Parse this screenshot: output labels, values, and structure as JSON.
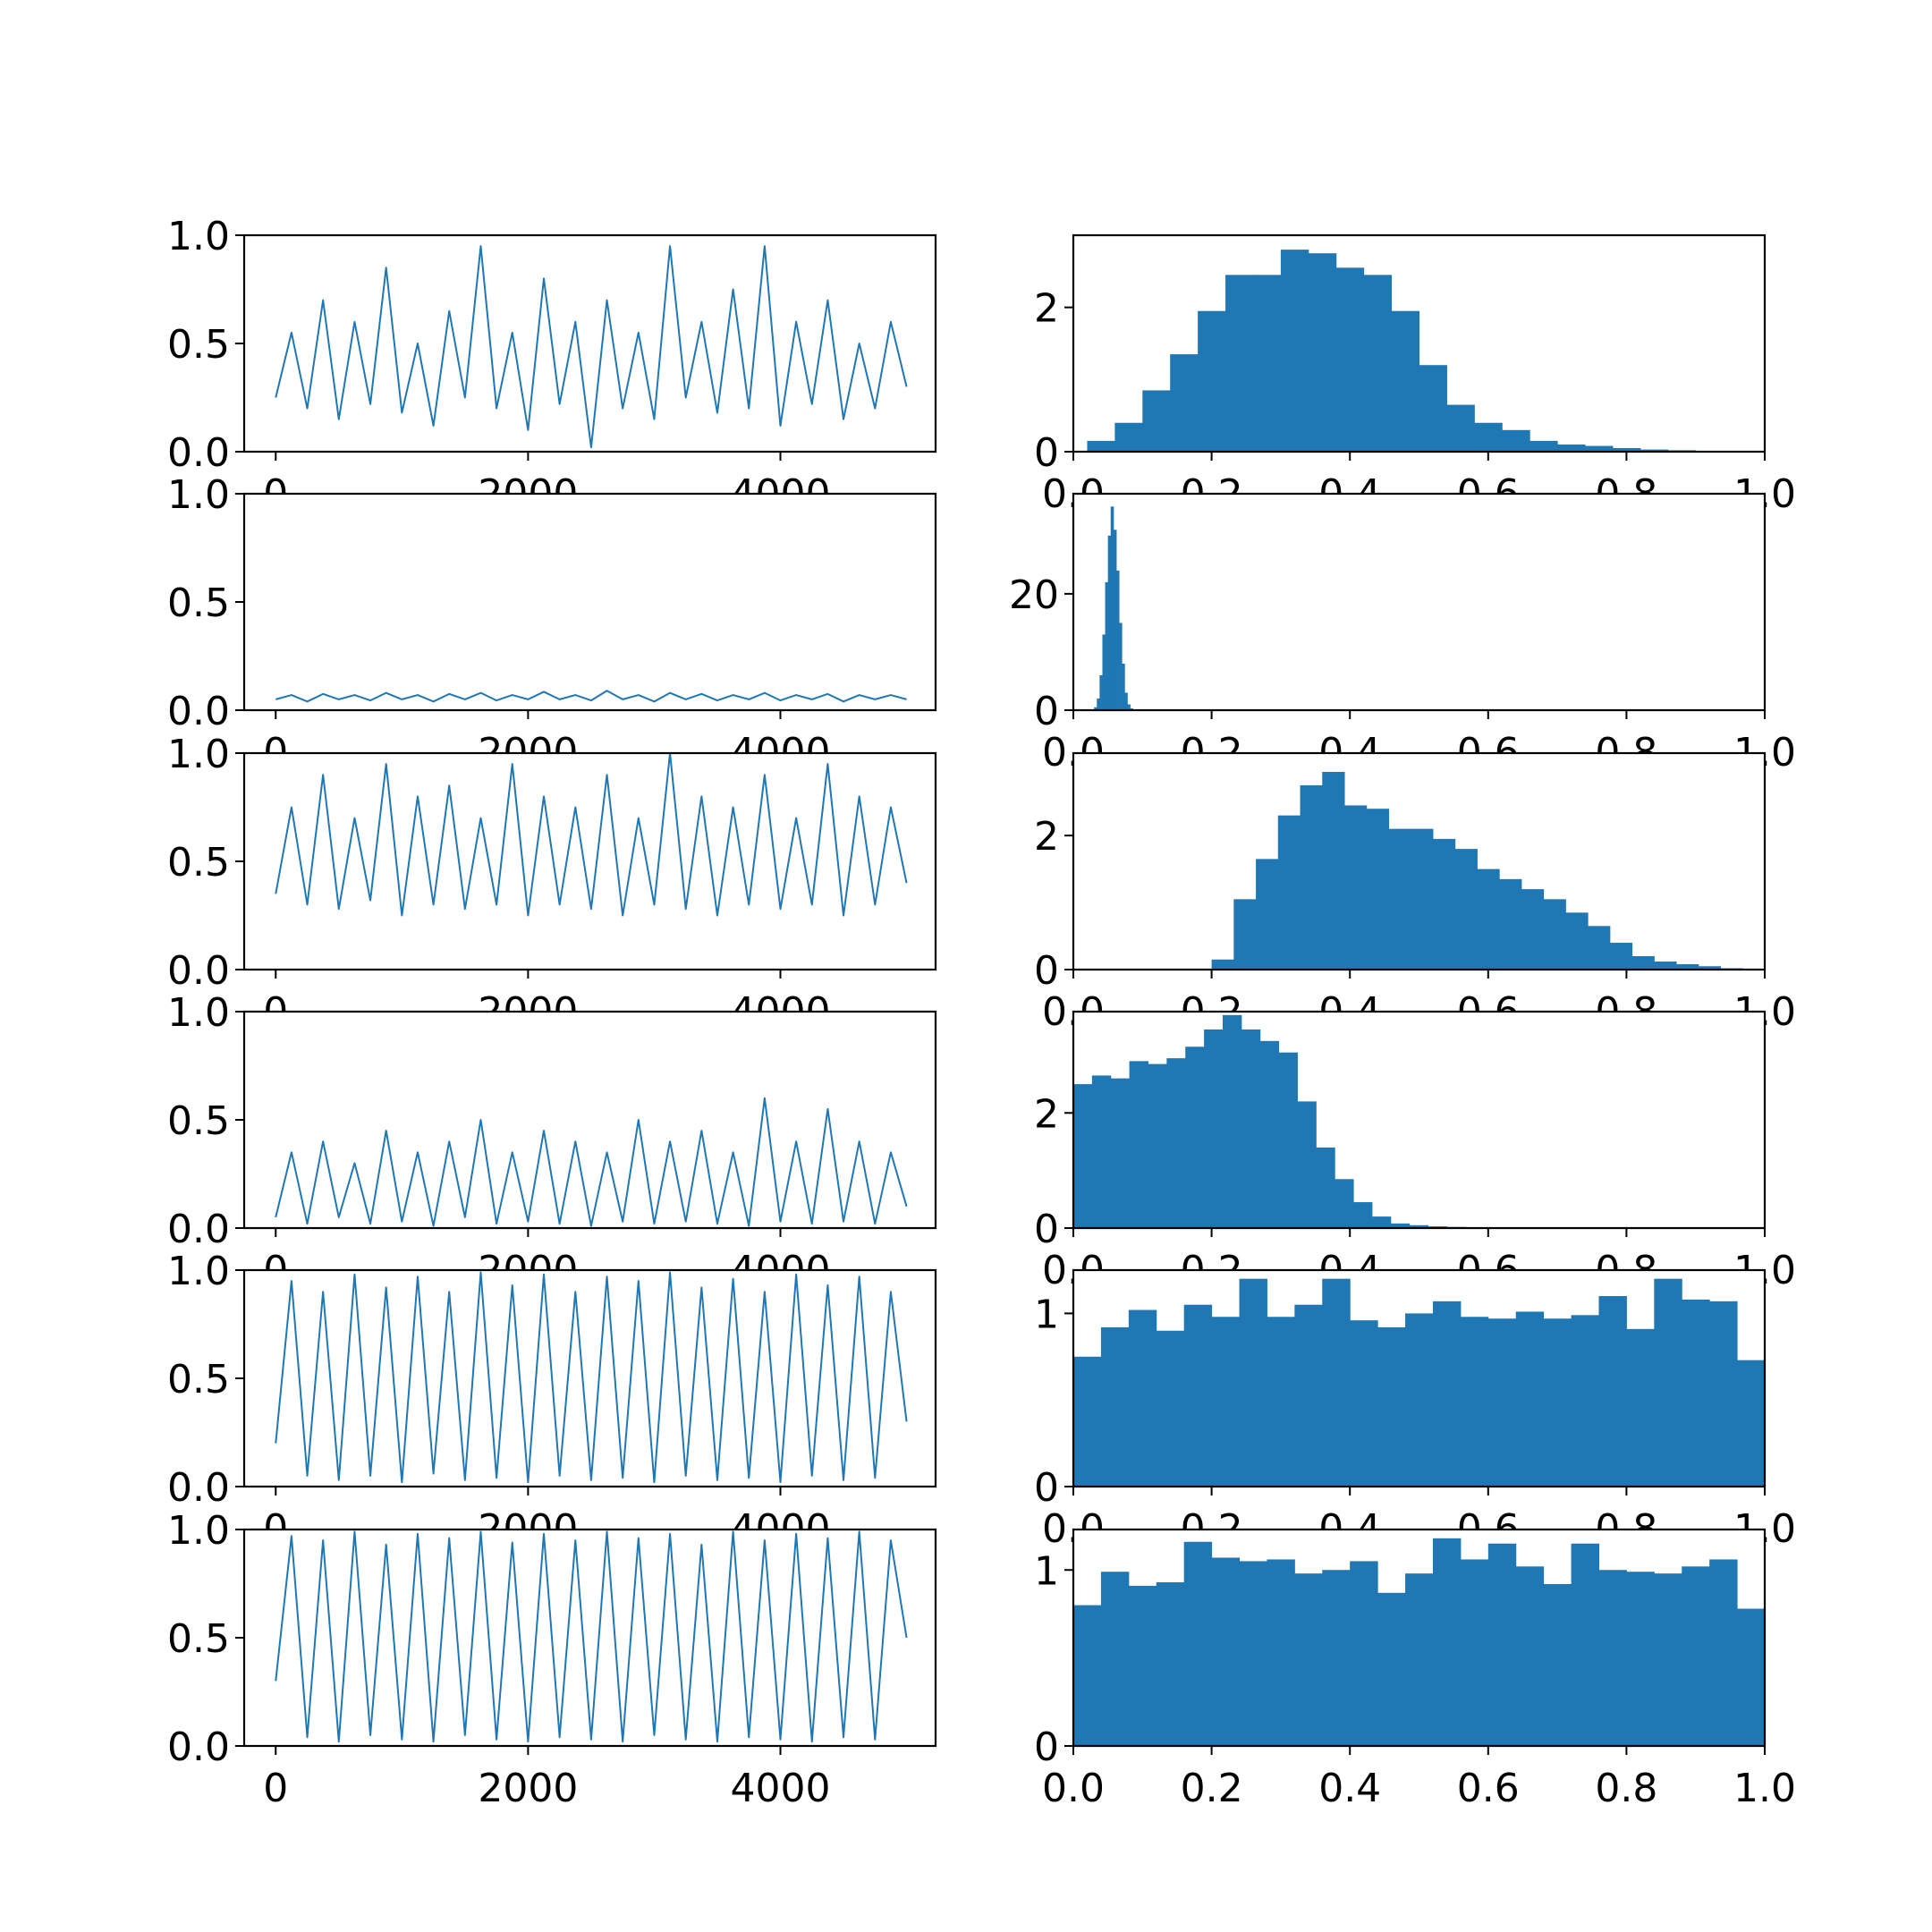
{
  "chart_data": [
    {
      "type": "line",
      "x": [
        0,
        125,
        250,
        375,
        500,
        625,
        750,
        875,
        1000,
        1125,
        1250,
        1375,
        1500,
        1625,
        1750,
        1875,
        2000,
        2125,
        2250,
        2375,
        2500,
        2625,
        2750,
        2875,
        3000,
        3125,
        3250,
        3375,
        3500,
        3625,
        3750,
        3875,
        4000,
        4125,
        4250,
        4375,
        4500,
        4625,
        4750,
        4875,
        5000
      ],
      "values": [
        0.25,
        0.55,
        0.2,
        0.7,
        0.15,
        0.6,
        0.22,
        0.85,
        0.18,
        0.5,
        0.12,
        0.65,
        0.25,
        0.95,
        0.2,
        0.55,
        0.1,
        0.8,
        0.22,
        0.6,
        0.02,
        0.7,
        0.2,
        0.55,
        0.15,
        0.95,
        0.25,
        0.6,
        0.18,
        0.75,
        0.2,
        0.95,
        0.12,
        0.6,
        0.22,
        0.7,
        0.15,
        0.5,
        0.2,
        0.6,
        0.3
      ],
      "color": "#1f77b4",
      "xlim": [
        -250,
        5230
      ],
      "xticks": [
        0,
        2000,
        4000
      ],
      "ylim": [
        0,
        1
      ],
      "yticks": [
        {
          "value": 0,
          "label": "0.0"
        },
        {
          "value": 0.5,
          "label": "0.5"
        },
        {
          "value": 1,
          "label": "1.0"
        }
      ]
    },
    {
      "type": "histogram",
      "bins": [
        0.02,
        0.06,
        0.1,
        0.14,
        0.18,
        0.22,
        0.26,
        0.3,
        0.34,
        0.38,
        0.42,
        0.46,
        0.5,
        0.54,
        0.58,
        0.62,
        0.66,
        0.7,
        0.74,
        0.78,
        0.82,
        0.86,
        0.9,
        0.94,
        0.98
      ],
      "values": [
        0.15,
        0.4,
        0.85,
        1.35,
        1.95,
        2.45,
        2.45,
        2.8,
        2.75,
        2.55,
        2.45,
        1.95,
        1.2,
        0.65,
        0.4,
        0.3,
        0.15,
        0.1,
        0.08,
        0.05,
        0.03,
        0.02,
        0.01,
        0.01
      ],
      "color": "#1f77b4",
      "xlim": [
        0,
        1
      ],
      "xticks": [
        {
          "value": 0,
          "label": "0.0"
        },
        {
          "value": 0.2,
          "label": "0.2"
        },
        {
          "value": 0.4,
          "label": "0.4"
        },
        {
          "value": 0.6,
          "label": "0.6"
        },
        {
          "value": 0.8,
          "label": "0.8"
        },
        {
          "value": 1,
          "label": "1.0"
        }
      ],
      "ylim": [
        0,
        3.0
      ],
      "yticks": [
        0,
        2
      ]
    },
    {
      "type": "line",
      "x": [
        0,
        125,
        250,
        375,
        500,
        625,
        750,
        875,
        1000,
        1125,
        1250,
        1375,
        1500,
        1625,
        1750,
        1875,
        2000,
        2125,
        2250,
        2375,
        2500,
        2625,
        2750,
        2875,
        3000,
        3125,
        3250,
        3375,
        3500,
        3625,
        3750,
        3875,
        4000,
        4125,
        4250,
        4375,
        4500,
        4625,
        4750,
        4875,
        5000
      ],
      "values": [
        0.05,
        0.07,
        0.04,
        0.075,
        0.05,
        0.07,
        0.045,
        0.08,
        0.05,
        0.07,
        0.04,
        0.075,
        0.05,
        0.08,
        0.045,
        0.07,
        0.05,
        0.085,
        0.05,
        0.07,
        0.045,
        0.09,
        0.05,
        0.07,
        0.04,
        0.08,
        0.05,
        0.075,
        0.045,
        0.07,
        0.05,
        0.08,
        0.045,
        0.07,
        0.05,
        0.075,
        0.04,
        0.07,
        0.05,
        0.07,
        0.05
      ],
      "color": "#1f77b4",
      "xlim": [
        -250,
        5230
      ],
      "xticks": [
        0,
        2000,
        4000
      ],
      "ylim": [
        0,
        1
      ],
      "yticks": [
        {
          "value": 0,
          "label": "0.0"
        },
        {
          "value": 0.5,
          "label": "0.5"
        },
        {
          "value": 1,
          "label": "1.0"
        }
      ]
    },
    {
      "type": "histogram",
      "bins": [
        0.03,
        0.034,
        0.038,
        0.042,
        0.046,
        0.05,
        0.054,
        0.058,
        0.062,
        0.066,
        0.07,
        0.074,
        0.078,
        0.082,
        0.086,
        0.09
      ],
      "values": [
        0.5,
        2,
        6,
        13,
        22,
        30,
        35,
        31,
        24,
        15,
        8,
        3,
        1,
        0.3,
        0.1
      ],
      "color": "#1f77b4",
      "xlim": [
        0,
        1
      ],
      "xticks": [
        {
          "value": 0,
          "label": "0.0"
        },
        {
          "value": 0.2,
          "label": "0.2"
        },
        {
          "value": 0.4,
          "label": "0.4"
        },
        {
          "value": 0.6,
          "label": "0.6"
        },
        {
          "value": 0.8,
          "label": "0.8"
        },
        {
          "value": 1,
          "label": "1.0"
        }
      ],
      "ylim": [
        0,
        37.2
      ],
      "yticks": [
        0,
        20
      ]
    },
    {
      "type": "line",
      "x": [
        0,
        125,
        250,
        375,
        500,
        625,
        750,
        875,
        1000,
        1125,
        1250,
        1375,
        1500,
        1625,
        1750,
        1875,
        2000,
        2125,
        2250,
        2375,
        2500,
        2625,
        2750,
        2875,
        3000,
        3125,
        3250,
        3375,
        3500,
        3625,
        3750,
        3875,
        4000,
        4125,
        4250,
        4375,
        4500,
        4625,
        4750,
        4875,
        5000
      ],
      "values": [
        0.35,
        0.75,
        0.3,
        0.9,
        0.28,
        0.7,
        0.32,
        0.95,
        0.25,
        0.8,
        0.3,
        0.85,
        0.28,
        0.7,
        0.3,
        0.95,
        0.25,
        0.8,
        0.3,
        0.75,
        0.28,
        0.9,
        0.25,
        0.7,
        0.3,
        1.0,
        0.28,
        0.8,
        0.25,
        0.75,
        0.3,
        0.9,
        0.28,
        0.7,
        0.3,
        0.95,
        0.25,
        0.8,
        0.3,
        0.75,
        0.4
      ],
      "color": "#1f77b4",
      "xlim": [
        -250,
        5230
      ],
      "xticks": [
        0,
        2000,
        4000
      ],
      "ylim": [
        0,
        1
      ],
      "yticks": [
        {
          "value": 0,
          "label": "0.0"
        },
        {
          "value": 0.5,
          "label": "0.5"
        },
        {
          "value": 1,
          "label": "1.0"
        }
      ]
    },
    {
      "type": "histogram",
      "bins": [
        0.2,
        0.232,
        0.264,
        0.296,
        0.328,
        0.36,
        0.392,
        0.424,
        0.456,
        0.488,
        0.52,
        0.552,
        0.584,
        0.616,
        0.648,
        0.68,
        0.712,
        0.744,
        0.776,
        0.808,
        0.84,
        0.872,
        0.904,
        0.936,
        0.968,
        1.0
      ],
      "values": [
        0.15,
        1.05,
        1.65,
        2.3,
        2.75,
        2.95,
        2.45,
        2.4,
        2.1,
        2.1,
        1.95,
        1.8,
        1.5,
        1.35,
        1.2,
        1.05,
        0.85,
        0.65,
        0.4,
        0.2,
        0.12,
        0.08,
        0.05,
        0.02,
        0.01
      ],
      "color": "#1f77b4",
      "xlim": [
        0,
        1
      ],
      "xticks": [
        {
          "value": 0,
          "label": "0.0"
        },
        {
          "value": 0.2,
          "label": "0.2"
        },
        {
          "value": 0.4,
          "label": "0.4"
        },
        {
          "value": 0.6,
          "label": "0.6"
        },
        {
          "value": 0.8,
          "label": "0.8"
        },
        {
          "value": 1,
          "label": "1.0"
        }
      ],
      "ylim": [
        0,
        3.23
      ],
      "yticks": [
        0,
        2
      ]
    },
    {
      "type": "line",
      "x": [
        0,
        125,
        250,
        375,
        500,
        625,
        750,
        875,
        1000,
        1125,
        1250,
        1375,
        1500,
        1625,
        1750,
        1875,
        2000,
        2125,
        2250,
        2375,
        2500,
        2625,
        2750,
        2875,
        3000,
        3125,
        3250,
        3375,
        3500,
        3625,
        3750,
        3875,
        4000,
        4125,
        4250,
        4375,
        4500,
        4625,
        4750,
        4875,
        5000
      ],
      "values": [
        0.05,
        0.35,
        0.02,
        0.4,
        0.05,
        0.3,
        0.02,
        0.45,
        0.03,
        0.35,
        0.01,
        0.4,
        0.05,
        0.5,
        0.02,
        0.35,
        0.03,
        0.45,
        0.02,
        0.4,
        0.01,
        0.35,
        0.03,
        0.5,
        0.02,
        0.4,
        0.03,
        0.45,
        0.02,
        0.35,
        0.01,
        0.6,
        0.03,
        0.4,
        0.02,
        0.55,
        0.03,
        0.4,
        0.02,
        0.35,
        0.1
      ],
      "color": "#1f77b4",
      "xlim": [
        -250,
        5230
      ],
      "xticks": [
        0,
        2000,
        4000
      ],
      "ylim": [
        0,
        1
      ],
      "yticks": [
        {
          "value": 0,
          "label": "0.0"
        },
        {
          "value": 0.5,
          "label": "0.5"
        },
        {
          "value": 1,
          "label": "1.0"
        }
      ]
    },
    {
      "type": "histogram",
      "bins": [
        0,
        0.027,
        0.054,
        0.081,
        0.108,
        0.135,
        0.162,
        0.189,
        0.216,
        0.243,
        0.27,
        0.297,
        0.324,
        0.351,
        0.378,
        0.405,
        0.432,
        0.459,
        0.486,
        0.513,
        0.54,
        0.567
      ],
      "values": [
        2.5,
        2.65,
        2.6,
        2.9,
        2.85,
        2.95,
        3.15,
        3.45,
        3.7,
        3.45,
        3.25,
        3.05,
        2.2,
        1.4,
        0.85,
        0.45,
        0.2,
        0.08,
        0.05,
        0.03,
        0.02
      ],
      "color": "#1f77b4",
      "xlim": [
        0,
        1
      ],
      "xticks": [
        {
          "value": 0,
          "label": "0.0"
        },
        {
          "value": 0.2,
          "label": "0.2"
        },
        {
          "value": 0.4,
          "label": "0.4"
        },
        {
          "value": 0.6,
          "label": "0.6"
        },
        {
          "value": 0.8,
          "label": "0.8"
        },
        {
          "value": 1,
          "label": "1.0"
        }
      ],
      "ylim": [
        0,
        3.76
      ],
      "yticks": [
        0,
        2
      ]
    },
    {
      "type": "line",
      "x": [
        0,
        125,
        250,
        375,
        500,
        625,
        750,
        875,
        1000,
        1125,
        1250,
        1375,
        1500,
        1625,
        1750,
        1875,
        2000,
        2125,
        2250,
        2375,
        2500,
        2625,
        2750,
        2875,
        3000,
        3125,
        3250,
        3375,
        3500,
        3625,
        3750,
        3875,
        4000,
        4125,
        4250,
        4375,
        4500,
        4625,
        4750,
        4875,
        5000
      ],
      "values": [
        0.2,
        0.95,
        0.05,
        0.9,
        0.03,
        0.98,
        0.05,
        0.92,
        0.02,
        0.97,
        0.06,
        0.9,
        0.03,
        0.99,
        0.04,
        0.93,
        0.02,
        0.98,
        0.05,
        0.9,
        0.03,
        0.97,
        0.04,
        0.95,
        0.02,
        0.99,
        0.05,
        0.92,
        0.03,
        0.96,
        0.04,
        0.9,
        0.02,
        0.98,
        0.05,
        0.93,
        0.03,
        0.97,
        0.04,
        0.9,
        0.3
      ],
      "color": "#1f77b4",
      "xlim": [
        -250,
        5230
      ],
      "xticks": [
        0,
        2000,
        4000
      ],
      "ylim": [
        0,
        1
      ],
      "yticks": [
        {
          "value": 0,
          "label": "0.0"
        },
        {
          "value": 0.5,
          "label": "0.5"
        },
        {
          "value": 1,
          "label": "1.0"
        }
      ]
    },
    {
      "type": "histogram",
      "bins": [
        0,
        0.04,
        0.08,
        0.12,
        0.16,
        0.2,
        0.24,
        0.28,
        0.32,
        0.36,
        0.4,
        0.44,
        0.48,
        0.52,
        0.56,
        0.6,
        0.64,
        0.68,
        0.72,
        0.76,
        0.8,
        0.84,
        0.88,
        0.92,
        0.96,
        1.0
      ],
      "values": [
        0.75,
        0.92,
        1.02,
        0.9,
        1.05,
        0.98,
        1.2,
        0.98,
        1.05,
        1.2,
        0.96,
        0.92,
        1.0,
        1.07,
        0.98,
        0.97,
        1.01,
        0.97,
        0.99,
        1.1,
        0.91,
        1.2,
        1.08,
        1.07,
        0.73
      ],
      "color": "#1f77b4",
      "xlim": [
        0,
        1
      ],
      "xticks": [
        {
          "value": 0,
          "label": "0.0"
        },
        {
          "value": 0.2,
          "label": "0.2"
        },
        {
          "value": 0.4,
          "label": "0.4"
        },
        {
          "value": 0.6,
          "label": "0.6"
        },
        {
          "value": 0.8,
          "label": "0.8"
        },
        {
          "value": 1,
          "label": "1.0"
        }
      ],
      "ylim": [
        0,
        1.25
      ],
      "yticks": [
        0,
        1
      ]
    },
    {
      "type": "line",
      "x": [
        0,
        125,
        250,
        375,
        500,
        625,
        750,
        875,
        1000,
        1125,
        1250,
        1375,
        1500,
        1625,
        1750,
        1875,
        2000,
        2125,
        2250,
        2375,
        2500,
        2625,
        2750,
        2875,
        3000,
        3125,
        3250,
        3375,
        3500,
        3625,
        3750,
        3875,
        4000,
        4125,
        4250,
        4375,
        4500,
        4625,
        4750,
        4875,
        5000
      ],
      "values": [
        0.3,
        0.97,
        0.04,
        0.95,
        0.02,
        0.99,
        0.05,
        0.93,
        0.03,
        0.98,
        0.02,
        0.96,
        0.05,
        0.99,
        0.03,
        0.94,
        0.02,
        0.98,
        0.04,
        0.95,
        0.03,
        0.99,
        0.02,
        0.96,
        0.05,
        0.98,
        0.03,
        0.93,
        0.02,
        0.99,
        0.04,
        0.95,
        0.03,
        0.98,
        0.02,
        0.96,
        0.04,
        0.99,
        0.03,
        0.95,
        0.5
      ],
      "color": "#1f77b4",
      "xlim": [
        -250,
        5230
      ],
      "xticks": [
        0,
        2000,
        4000
      ],
      "ylim": [
        0,
        1
      ],
      "yticks": [
        {
          "value": 0,
          "label": "0.0"
        },
        {
          "value": 0.5,
          "label": "0.5"
        },
        {
          "value": 1,
          "label": "1.0"
        }
      ]
    },
    {
      "type": "histogram",
      "bins": [
        0,
        0.04,
        0.08,
        0.12,
        0.16,
        0.2,
        0.24,
        0.28,
        0.32,
        0.36,
        0.4,
        0.44,
        0.48,
        0.52,
        0.56,
        0.6,
        0.64,
        0.68,
        0.72,
        0.76,
        0.8,
        0.84,
        0.88,
        0.92,
        0.96,
        1.0
      ],
      "values": [
        0.8,
        0.99,
        0.91,
        0.93,
        1.16,
        1.07,
        1.05,
        1.06,
        0.98,
        1.0,
        1.05,
        0.87,
        0.98,
        1.18,
        1.06,
        1.15,
        1.02,
        0.92,
        1.15,
        1.0,
        0.99,
        0.98,
        1.02,
        1.06,
        0.78
      ],
      "color": "#1f77b4",
      "xlim": [
        0,
        1
      ],
      "xticks": [
        {
          "value": 0,
          "label": "0.0"
        },
        {
          "value": 0.2,
          "label": "0.2"
        },
        {
          "value": 0.4,
          "label": "0.4"
        },
        {
          "value": 0.6,
          "label": "0.6"
        },
        {
          "value": 0.8,
          "label": "0.8"
        },
        {
          "value": 1,
          "label": "1.0"
        }
      ],
      "ylim": [
        0,
        1.23
      ],
      "yticks": [
        0,
        1
      ]
    }
  ]
}
